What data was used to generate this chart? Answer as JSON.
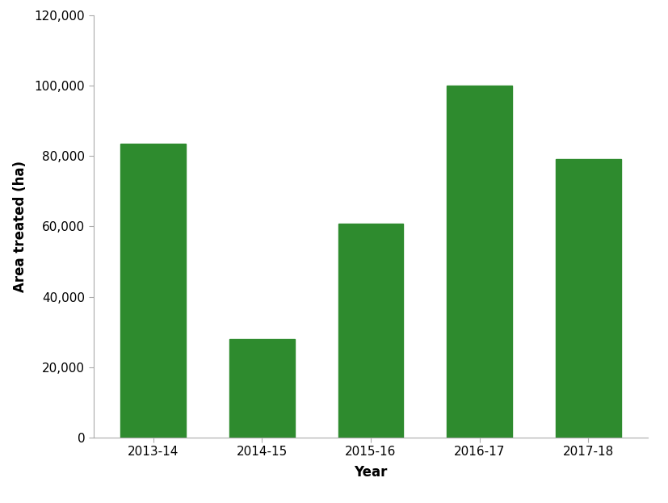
{
  "categories": [
    "2013-14",
    "2014-15",
    "2015-16",
    "2016-17",
    "2017-18"
  ],
  "values": [
    83500,
    28000,
    60700,
    100000,
    79000
  ],
  "bar_color": "#2e8b2e",
  "xlabel": "Year",
  "ylabel": "Area treated (ha)",
  "ylim": [
    0,
    120000
  ],
  "yticks": [
    0,
    20000,
    40000,
    60000,
    80000,
    100000,
    120000
  ],
  "background_color": "#ffffff",
  "bar_width": 0.6,
  "xlabel_fontsize": 12,
  "ylabel_fontsize": 12,
  "tick_fontsize": 11
}
